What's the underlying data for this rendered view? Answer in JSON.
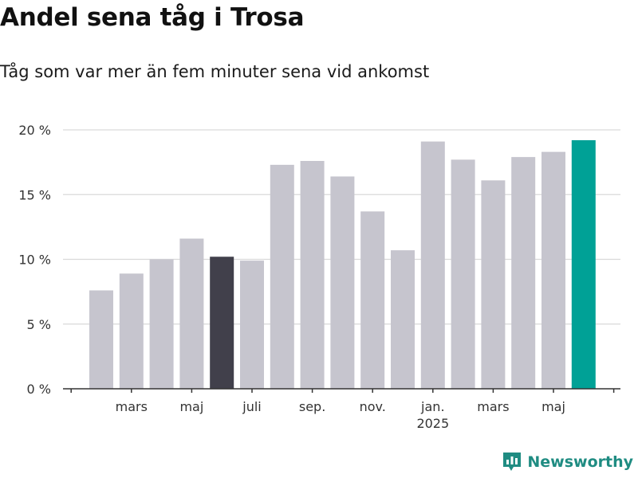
{
  "header": {
    "title": "Andel sena tåg i Trosa",
    "subtitle": "Tåg som var mer än fem minuter sena vid ankomst"
  },
  "branding": {
    "name": "Newsworthy",
    "icon": "bar-chart-logo-icon",
    "color": "#1f8c82"
  },
  "colors": {
    "default_bar": "#c6c5ce",
    "highlight_bar": "#41404b",
    "latest_bar": "#00a196",
    "grid": "#d9d9d9",
    "axis": "#333333"
  },
  "chart_data": {
    "type": "bar",
    "title": "Andel sena tåg i Trosa",
    "subtitle": "Tåg som var mer än fem minuter sena vid ankomst",
    "x": [
      "2024-02",
      "2024-03",
      "2024-04",
      "2024-05",
      "2024-06",
      "2024-07",
      "2024-08",
      "2024-09",
      "2024-10",
      "2024-11",
      "2024-12",
      "2025-01",
      "2025-02",
      "2025-03",
      "2025-04",
      "2025-05",
      "2025-06"
    ],
    "values": [
      7.6,
      8.9,
      10.0,
      11.6,
      10.2,
      9.9,
      17.3,
      17.6,
      16.4,
      13.7,
      10.7,
      19.1,
      17.7,
      16.1,
      17.9,
      18.3,
      19.2
    ],
    "highlight": {
      "2024-06": "highlight_bar",
      "2025-06": "latest_bar"
    },
    "ylim": [
      0,
      20
    ],
    "yticks": [
      0,
      5,
      10,
      15,
      20
    ],
    "ytick_labels": [
      "0 %",
      "5 %",
      "10 %",
      "15 %",
      "20 %"
    ],
    "xtick_labels": [
      {
        "label": "mars",
        "sublabel": "",
        "at": "2024-03"
      },
      {
        "label": "maj",
        "sublabel": "",
        "at": "2024-05"
      },
      {
        "label": "juli",
        "sublabel": "",
        "at": "2024-07"
      },
      {
        "label": "sep.",
        "sublabel": "",
        "at": "2024-09"
      },
      {
        "label": "nov.",
        "sublabel": "",
        "at": "2024-11"
      },
      {
        "label": "jan.",
        "sublabel": "2025",
        "at": "2025-01"
      },
      {
        "label": "mars",
        "sublabel": "",
        "at": "2025-03"
      },
      {
        "label": "maj",
        "sublabel": "",
        "at": "2025-05"
      }
    ],
    "xlabel": "",
    "ylabel": "",
    "grid": true
  }
}
